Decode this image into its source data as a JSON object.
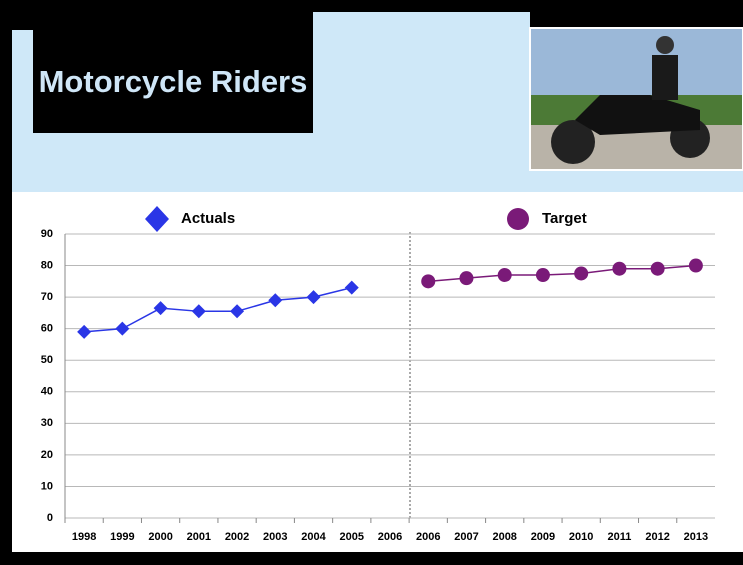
{
  "chart_data": {
    "type": "line",
    "title": "Motorcycle Riders",
    "categories": [
      "1998",
      "1999",
      "2000",
      "2001",
      "2002",
      "2003",
      "2004",
      "2005",
      "2006",
      "2006",
      "2007",
      "2008",
      "2009",
      "2010",
      "2011",
      "2012",
      "2013"
    ],
    "series": [
      {
        "name": "Actuals",
        "color": "#2a36e6",
        "marker": "diamond",
        "values": [
          59,
          60,
          66.5,
          65.5,
          65.5,
          69,
          70,
          73,
          null,
          null,
          null,
          null,
          null,
          null,
          null,
          null,
          null
        ]
      },
      {
        "name": "Target",
        "color": "#7a1a78",
        "marker": "circle",
        "values": [
          null,
          null,
          null,
          null,
          null,
          null,
          null,
          null,
          null,
          75,
          76,
          77,
          77,
          77.5,
          79,
          79,
          80
        ]
      }
    ],
    "ylim": [
      0,
      90
    ],
    "yticks": [
      0,
      10,
      20,
      30,
      40,
      50,
      60,
      70,
      80,
      90
    ],
    "grid": true
  }
}
